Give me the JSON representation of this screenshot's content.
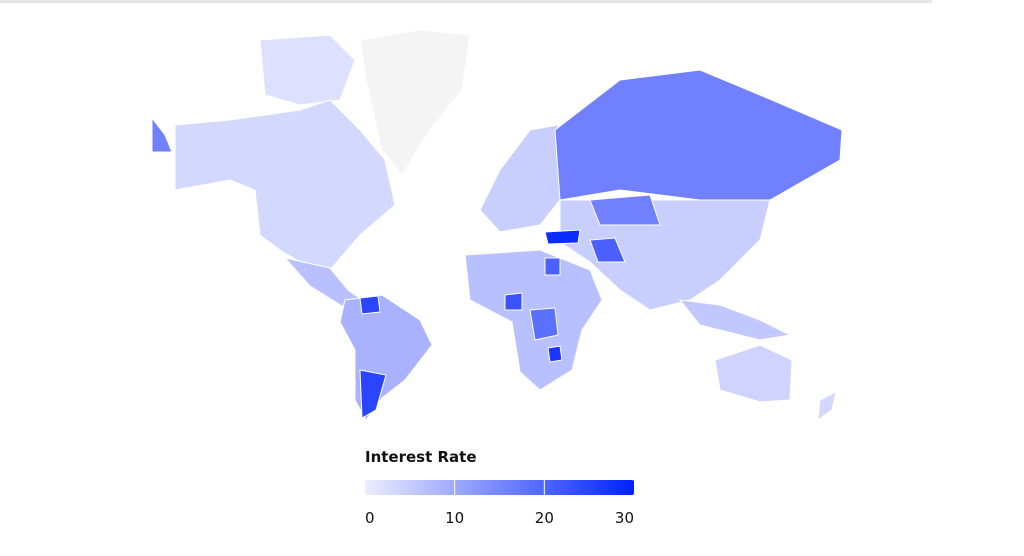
{
  "legend": {
    "title": "Interest Rate",
    "range": [
      0,
      30
    ],
    "ticks": [
      0,
      10,
      20,
      30
    ],
    "colors": [
      "#eceeff",
      "#0022ff"
    ]
  }
}
